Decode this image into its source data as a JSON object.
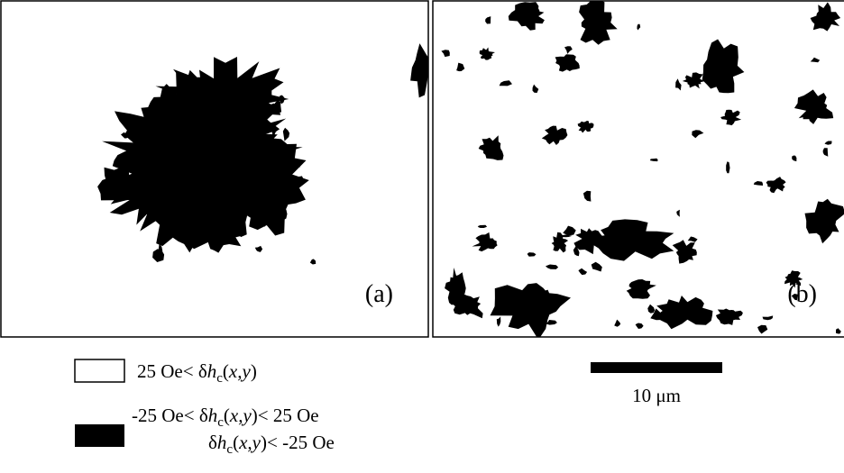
{
  "panels": [
    {
      "label": "(a)"
    },
    {
      "label": "(b)"
    }
  ],
  "legend": {
    "items": [
      {
        "segments": [
          {
            "text": "25 Oe< δ",
            "style": "normal"
          },
          {
            "text": "h",
            "style": "italic"
          },
          {
            "text": "c",
            "style": "sub"
          },
          {
            "text": "(",
            "style": "normal"
          },
          {
            "text": "x,y",
            "style": "italic"
          },
          {
            "text": ")",
            "style": "normal"
          }
        ]
      },
      {
        "segments": [
          {
            "text": "-25 Oe< δ",
            "style": "normal"
          },
          {
            "text": "h",
            "style": "italic"
          },
          {
            "text": "c",
            "style": "sub"
          },
          {
            "text": "(",
            "style": "normal"
          },
          {
            "text": "x,y",
            "style": "italic"
          },
          {
            "text": ")< 25 Oe",
            "style": "normal"
          }
        ]
      },
      {
        "segments": [
          {
            "text": "δ",
            "style": "normal"
          },
          {
            "text": "h",
            "style": "italic"
          },
          {
            "text": "c",
            "style": "sub"
          },
          {
            "text": "(",
            "style": "normal"
          },
          {
            "text": "x,y",
            "style": "italic"
          },
          {
            "text": ")< -25 Oe",
            "style": "normal"
          }
        ]
      }
    ]
  },
  "scale_bar": {
    "label": "10 μm"
  }
}
